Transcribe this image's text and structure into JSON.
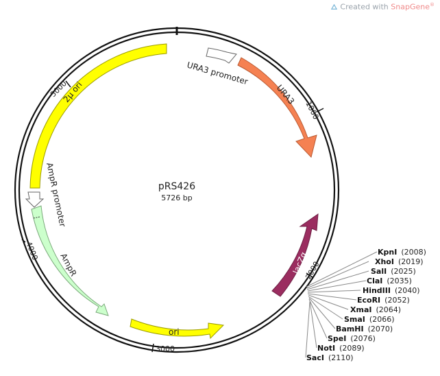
{
  "watermark": {
    "prefix": "Created with ",
    "brand": "SnapGene",
    "mark": "®"
  },
  "plasmid": {
    "name": "pRS426",
    "length_label": "5726 bp",
    "length_bp": 5726
  },
  "ticks": [
    {
      "label": "1000",
      "bp": 1000
    },
    {
      "label": "2000",
      "bp": 2000
    },
    {
      "label": "3000",
      "bp": 3000
    },
    {
      "label": "4000",
      "bp": 4000
    },
    {
      "label": "5000",
      "bp": 5000
    }
  ],
  "features": [
    {
      "label": "URA3 promoter",
      "color": "#ffffff",
      "stroke": "#666666"
    },
    {
      "label": "URA3",
      "color": "#f58152",
      "stroke": "#b85a33"
    },
    {
      "label": "lacZα",
      "color": "#9b2d60",
      "stroke": "#6e1f44"
    },
    {
      "label": "ori",
      "color": "#ffff00",
      "stroke": "#9a9a00"
    },
    {
      "label": "AmpR",
      "color": "#ccffcc",
      "stroke": "#7aa87a"
    },
    {
      "label": "AmpR promoter",
      "color": "#ffffff",
      "stroke": "#666666"
    },
    {
      "label": "2μ ori",
      "color": "#ffff00",
      "stroke": "#9a9a00"
    }
  ],
  "sites": [
    {
      "name": "KpnI",
      "pos": "(2008)"
    },
    {
      "name": "XhoI",
      "pos": "(2019)"
    },
    {
      "name": "SalI",
      "pos": "(2025)"
    },
    {
      "name": "ClaI",
      "pos": "(2035)"
    },
    {
      "name": "HindIII",
      "pos": "(2040)"
    },
    {
      "name": "EcoRI",
      "pos": "(2052)"
    },
    {
      "name": "XmaI",
      "pos": "(2064)"
    },
    {
      "name": "SmaI",
      "pos": "(2066)"
    },
    {
      "name": "BamHI",
      "pos": "(2070)"
    },
    {
      "name": "SpeI",
      "pos": "(2076)"
    },
    {
      "name": "NotI",
      "pos": "(2089)"
    },
    {
      "name": "SacI",
      "pos": "(2110)"
    }
  ]
}
